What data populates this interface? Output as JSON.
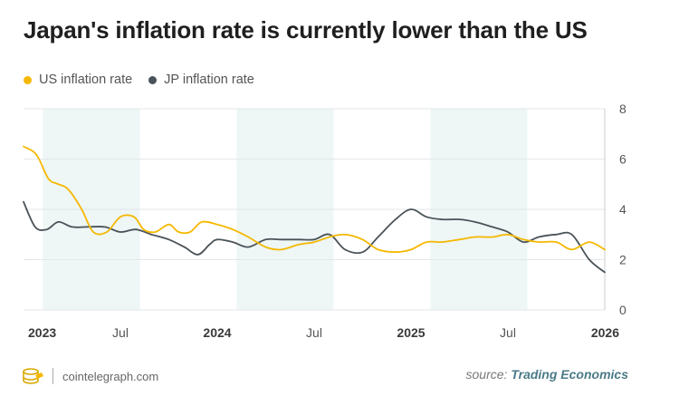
{
  "chart_data": {
    "type": "line",
    "title": "Japan's inflation rate is currently lower than the US",
    "ylim": [
      0,
      8
    ],
    "y_ticks": [
      "0",
      "2",
      "4",
      "6",
      "8"
    ],
    "xlim": [
      2023.0,
      2026.0
    ],
    "x_ticks": [
      {
        "value": 2023.0,
        "label": "2023",
        "bold": true
      },
      {
        "value": 2023.5,
        "label": "Jul",
        "bold": false
      },
      {
        "value": 2024.0,
        "label": "2024",
        "bold": true
      },
      {
        "value": 2024.5,
        "label": "Jul",
        "bold": false
      },
      {
        "value": 2025.0,
        "label": "2025",
        "bold": true
      },
      {
        "value": 2025.5,
        "label": "Jul",
        "bold": false
      },
      {
        "value": 2026.0,
        "label": "2026",
        "bold": true
      }
    ],
    "shaded_bands": [
      [
        2023.1,
        2023.6
      ],
      [
        2024.1,
        2024.6
      ],
      [
        2025.1,
        2025.6
      ]
    ],
    "series": [
      {
        "name": "US inflation rate",
        "color": "#f5b800",
        "x": [
          2023.0,
          2023.05,
          2023.08,
          2023.13,
          2023.18,
          2023.23,
          2023.3,
          2023.36,
          2023.43,
          2023.5,
          2023.57,
          2023.62,
          2023.68,
          2023.75,
          2023.8,
          2023.86,
          2023.92,
          2024.0,
          2024.08,
          2024.16,
          2024.25,
          2024.33,
          2024.42,
          2024.5,
          2024.58,
          2024.66,
          2024.75,
          2024.83,
          2024.92,
          2025.0,
          2025.08,
          2025.16,
          2025.25,
          2025.33,
          2025.42,
          2025.5,
          2025.58,
          2025.66,
          2025.75,
          2025.83,
          2025.92,
          2026.0
        ],
        "values": [
          6.5,
          6.3,
          6.0,
          5.2,
          5.0,
          4.8,
          4.0,
          3.1,
          3.1,
          3.7,
          3.7,
          3.2,
          3.1,
          3.4,
          3.1,
          3.1,
          3.5,
          3.4,
          3.2,
          2.9,
          2.5,
          2.4,
          2.6,
          2.7,
          2.9,
          3.0,
          2.8,
          2.4,
          2.3,
          2.4,
          2.7,
          2.7,
          2.8,
          2.9,
          2.9,
          3.0,
          2.8,
          2.7,
          2.7,
          2.4,
          2.7,
          2.4
        ]
      },
      {
        "name": "JP inflation rate",
        "color": "#4a5358",
        "x": [
          2023.0,
          2023.06,
          2023.12,
          2023.18,
          2023.25,
          2023.33,
          2023.42,
          2023.5,
          2023.58,
          2023.66,
          2023.75,
          2023.83,
          2023.9,
          2023.96,
          2024.0,
          2024.08,
          2024.16,
          2024.25,
          2024.33,
          2024.42,
          2024.5,
          2024.58,
          2024.66,
          2024.75,
          2024.83,
          2024.92,
          2025.0,
          2025.08,
          2025.16,
          2025.25,
          2025.33,
          2025.42,
          2025.5,
          2025.58,
          2025.66,
          2025.75,
          2025.83,
          2025.92,
          2026.0
        ],
        "values": [
          4.3,
          3.3,
          3.2,
          3.5,
          3.3,
          3.3,
          3.3,
          3.1,
          3.2,
          3.0,
          2.8,
          2.5,
          2.2,
          2.6,
          2.8,
          2.7,
          2.5,
          2.8,
          2.8,
          2.8,
          2.8,
          3.0,
          2.4,
          2.3,
          2.9,
          3.6,
          4.0,
          3.7,
          3.6,
          3.6,
          3.5,
          3.3,
          3.1,
          2.7,
          2.9,
          3.0,
          3.0,
          2.0,
          1.5
        ]
      }
    ]
  },
  "legend": {
    "us_label": "US inflation rate",
    "jp_label": "JP inflation rate"
  },
  "footer": {
    "brand": "cointelegraph.com",
    "source_prefix": "source:",
    "source_name": "Trading Economics"
  },
  "colors": {
    "us": "#f5b800",
    "jp": "#4a5358",
    "band": "#eef6f6",
    "grid": "#e3e7ea"
  }
}
